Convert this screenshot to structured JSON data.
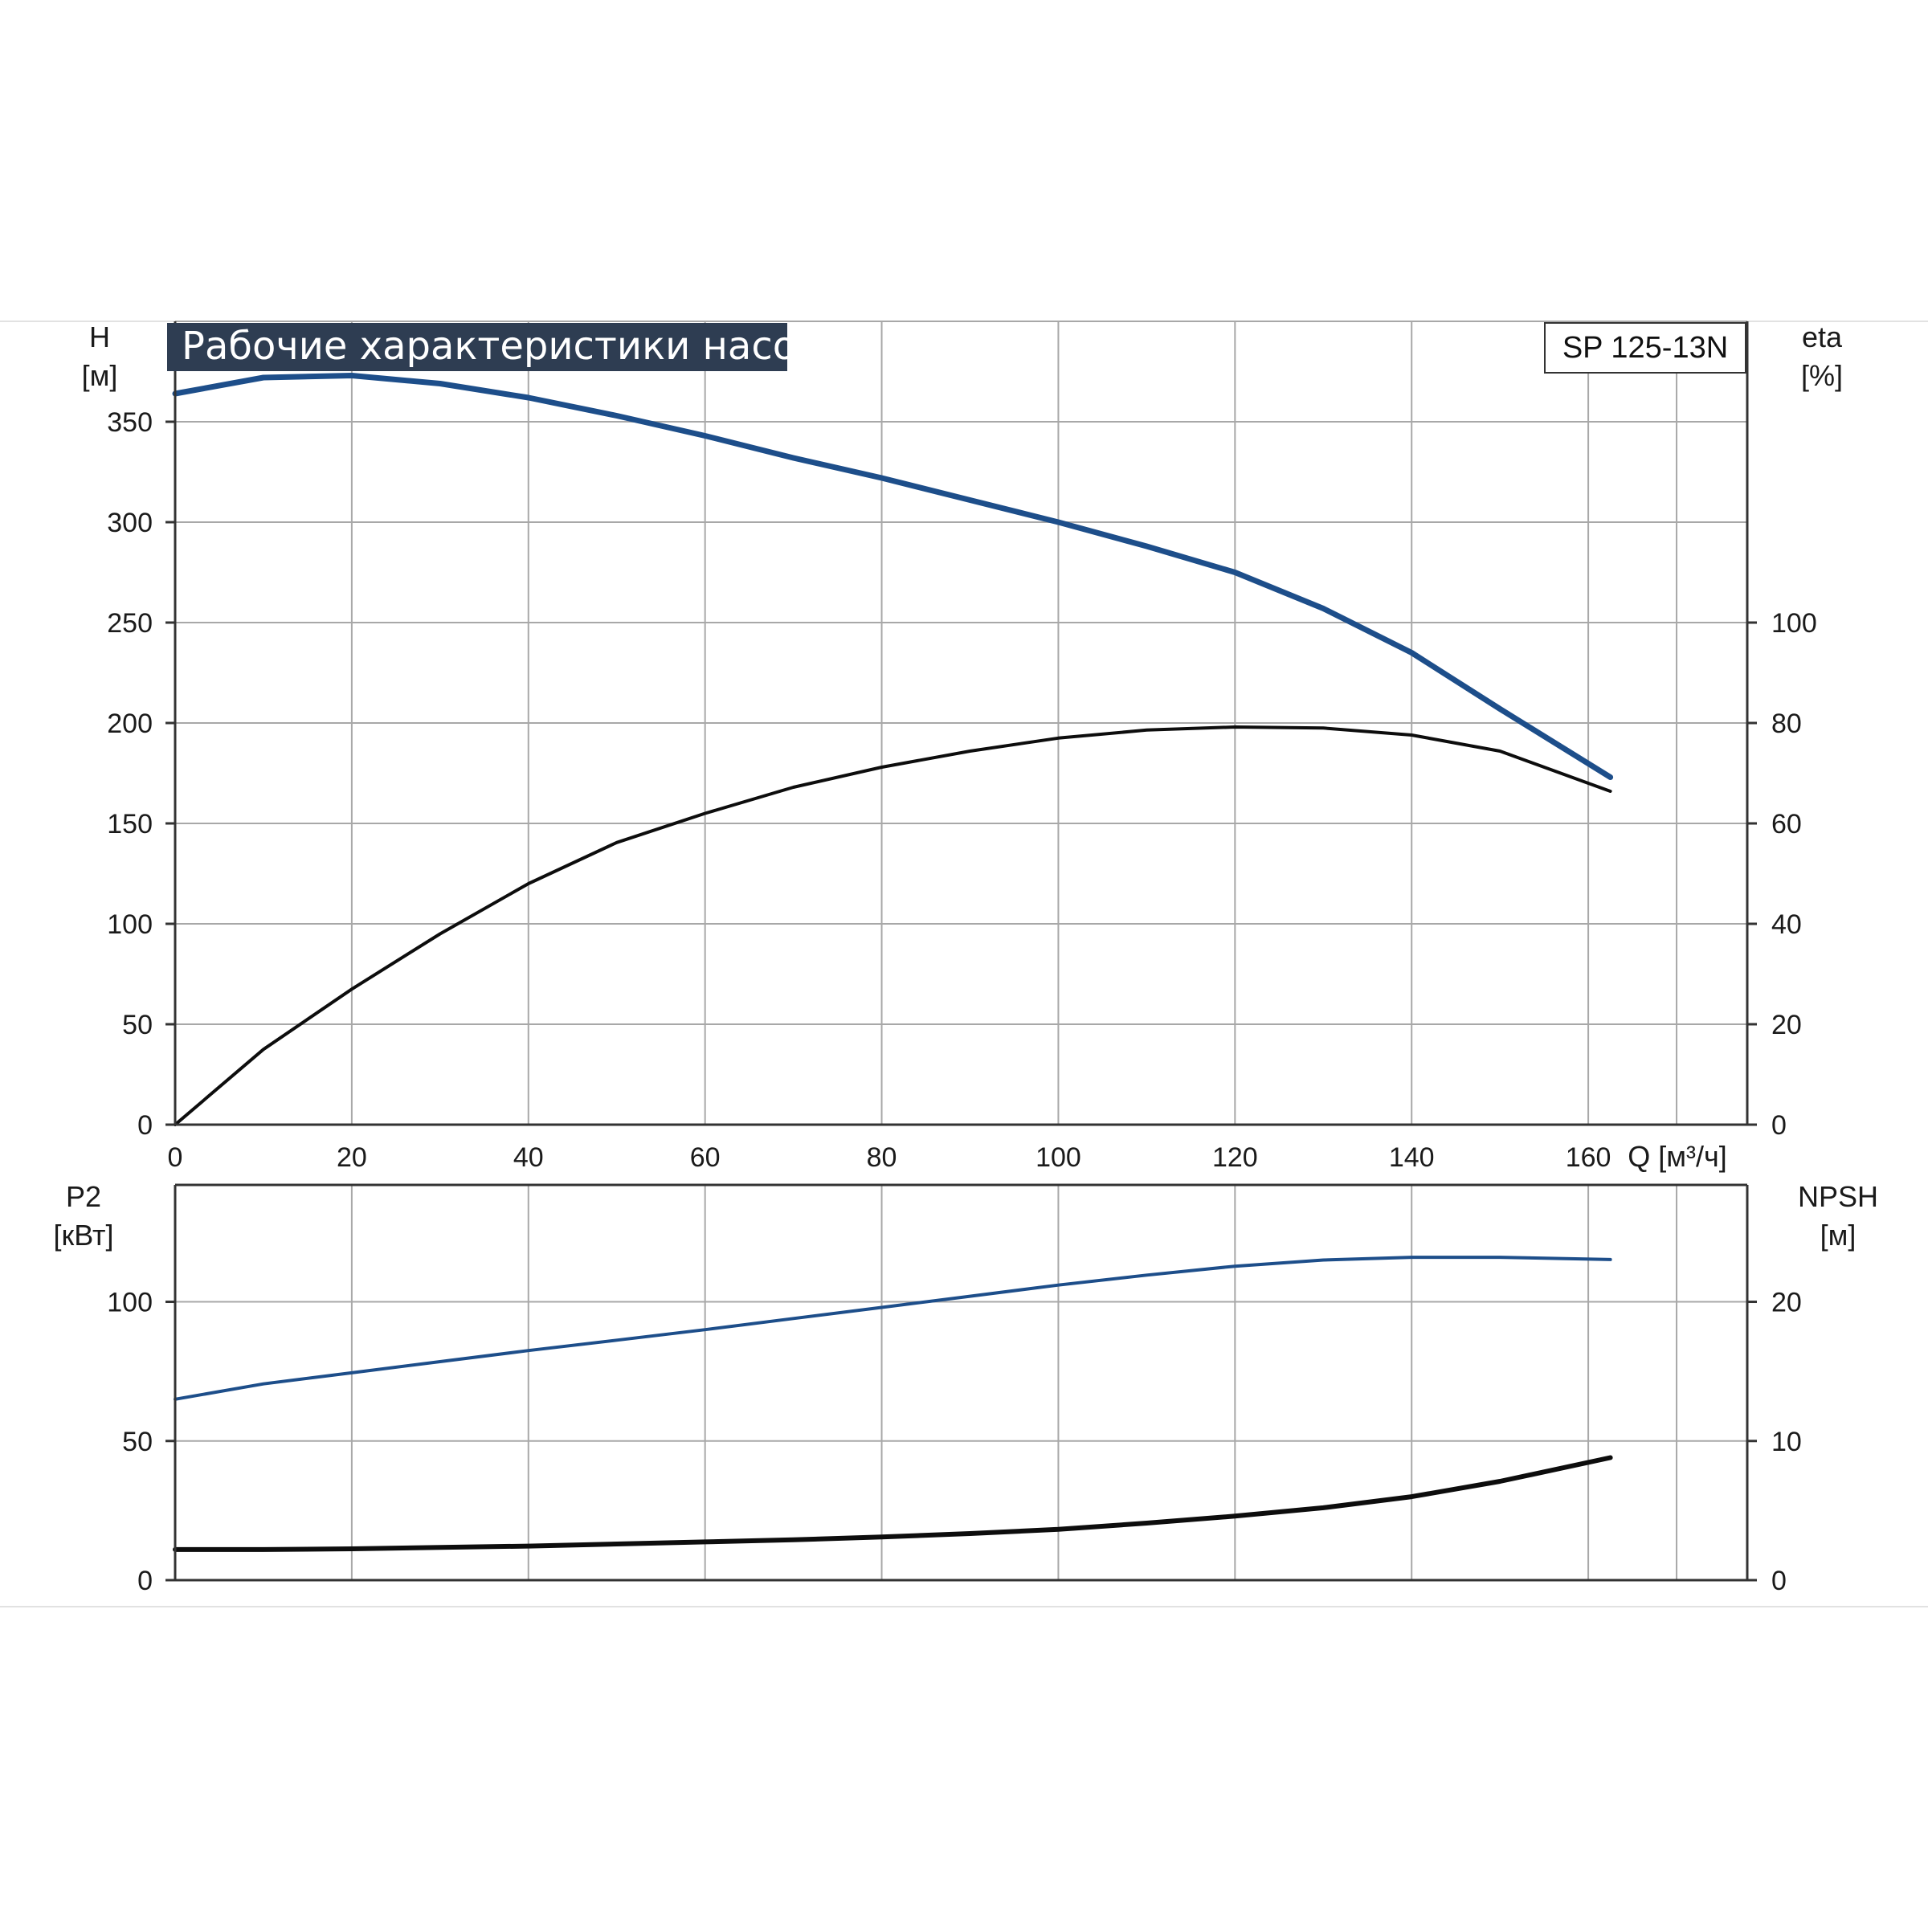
{
  "title": "Рабочие характеристики насоса",
  "model": "SP 125-13N",
  "colors": {
    "blue": "#1d4e8a",
    "black": "#0d0d0d",
    "grid": "#a8a8a8",
    "title_bg": "#2e3d52"
  },
  "chart_data": [
    {
      "type": "line",
      "name": "upper",
      "xlabel": "Q [м³/ч]",
      "xlim": [
        0,
        178
      ],
      "xticks": [
        0,
        20,
        40,
        60,
        80,
        100,
        120,
        140,
        160
      ],
      "y_left": {
        "label_top": "H",
        "label_unit": "[м]",
        "lim": [
          0,
          400
        ],
        "ticks": [
          0,
          50,
          100,
          150,
          200,
          250,
          300,
          350
        ]
      },
      "y_right": {
        "label_top": "eta",
        "label_unit": "[%]",
        "lim": [
          0,
          160
        ],
        "ticks": [
          0,
          20,
          40,
          60,
          80,
          100
        ]
      },
      "grid": true,
      "series": [
        {
          "axis": "left",
          "color": "blue",
          "x": [
            0,
            10,
            20,
            30,
            40,
            50,
            60,
            70,
            80,
            90,
            100,
            110,
            120,
            130,
            140,
            150,
            162.5
          ],
          "y": [
            364,
            372,
            373,
            369,
            362,
            353,
            343,
            332,
            322,
            311,
            300,
            288,
            275,
            257,
            235,
            207,
            173
          ]
        },
        {
          "axis": "right",
          "color": "black",
          "x": [
            0,
            10,
            20,
            30,
            40,
            50,
            60,
            70,
            80,
            90,
            100,
            110,
            120,
            130,
            140,
            150,
            162.5
          ],
          "y": [
            0,
            15,
            27,
            38,
            48,
            56.2,
            62,
            67.2,
            71.2,
            74.4,
            77,
            78.6,
            79.2,
            79,
            77.6,
            74.4,
            66.4
          ]
        }
      ]
    },
    {
      "type": "line",
      "name": "lower",
      "xlim": [
        0,
        178
      ],
      "xticks": [
        0,
        20,
        40,
        60,
        80,
        100,
        120,
        140,
        160
      ],
      "y_left": {
        "label_top": "P2",
        "label_unit": "[кВт]",
        "lim": [
          0,
          142
        ],
        "ticks": [
          0,
          50,
          100
        ]
      },
      "y_right": {
        "label_top": "NPSH",
        "label_unit": "[м]",
        "lim": [
          0,
          28.4
        ],
        "ticks": [
          0,
          10,
          20
        ]
      },
      "grid": true,
      "series": [
        {
          "axis": "left",
          "color": "blue",
          "x": [
            0,
            10,
            20,
            30,
            40,
            50,
            60,
            70,
            80,
            90,
            100,
            110,
            120,
            130,
            140,
            150,
            162.5
          ],
          "y": [
            65,
            70.5,
            74.5,
            78.5,
            82.5,
            86.2,
            90,
            94,
            98,
            102,
            106,
            109.6,
            112.8,
            115,
            116,
            116,
            115.2
          ]
        },
        {
          "axis": "right",
          "color": "black",
          "x": [
            0,
            10,
            20,
            30,
            40,
            50,
            60,
            70,
            80,
            90,
            100,
            110,
            120,
            130,
            140,
            150,
            162.5
          ],
          "y": [
            2.2,
            2.2,
            2.25,
            2.35,
            2.45,
            2.6,
            2.75,
            2.9,
            3.1,
            3.35,
            3.65,
            4.1,
            4.6,
            5.2,
            6.0,
            7.1,
            8.8
          ]
        }
      ]
    }
  ]
}
